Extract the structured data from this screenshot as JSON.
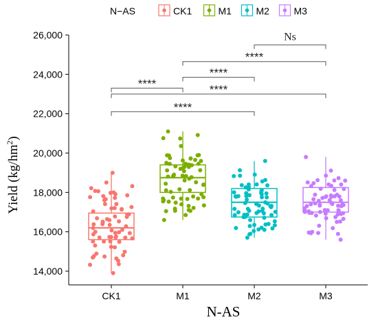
{
  "chart_data": {
    "type": "box",
    "legend": {
      "title": "N−AS",
      "position": "top",
      "entries": [
        "CK1",
        "M1",
        "M2",
        "M3"
      ]
    },
    "colors": {
      "CK1": "#F8766D",
      "M1": "#7CAE00",
      "M2": "#00BFC4",
      "M3": "#C77CFF"
    },
    "xlabel": "N-AS",
    "ylabel_main": "Yield (kg/hm",
    "ylabel_sup": "2",
    "ylabel_close": ")",
    "ylim": [
      13700,
      26000
    ],
    "y_ticks": [
      14000,
      16000,
      18000,
      20000,
      22000,
      24000,
      26000
    ],
    "y_tick_labels": [
      "14,000",
      "16,000",
      "18,000",
      "20,000",
      "22,000",
      "24,000",
      "26,000"
    ],
    "categories": [
      "CK1",
      "M1",
      "M2",
      "M3"
    ],
    "boxes": [
      {
        "group": "CK1",
        "min": 13900,
        "q1": 15600,
        "median": 16200,
        "q3": 16950,
        "max": 19000
      },
      {
        "group": "M1",
        "min": 16600,
        "q1": 18000,
        "median": 18750,
        "q3": 19400,
        "max": 21100
      },
      {
        "group": "M2",
        "min": 15700,
        "q1": 16750,
        "median": 17500,
        "q3": 18200,
        "max": 19600
      },
      {
        "group": "M3",
        "min": 15600,
        "q1": 17000,
        "median": 17500,
        "q3": 18250,
        "max": 19800
      }
    ],
    "comparisons": [
      {
        "groups": [
          "CK1",
          "M1"
        ],
        "y": 23300,
        "label": "****"
      },
      {
        "groups": [
          "CK1",
          "M2"
        ],
        "y": 22100,
        "label": "****"
      },
      {
        "groups": [
          "CK1",
          "M3"
        ],
        "y": 23000,
        "label": "****"
      },
      {
        "groups": [
          "M1",
          "M2"
        ],
        "y": 23850,
        "label": "****"
      },
      {
        "groups": [
          "M1",
          "M3"
        ],
        "y": 24650,
        "label": "****"
      },
      {
        "groups": [
          "M2",
          "M3"
        ],
        "y": 25500,
        "label": "Ns"
      }
    ],
    "grid": false
  }
}
